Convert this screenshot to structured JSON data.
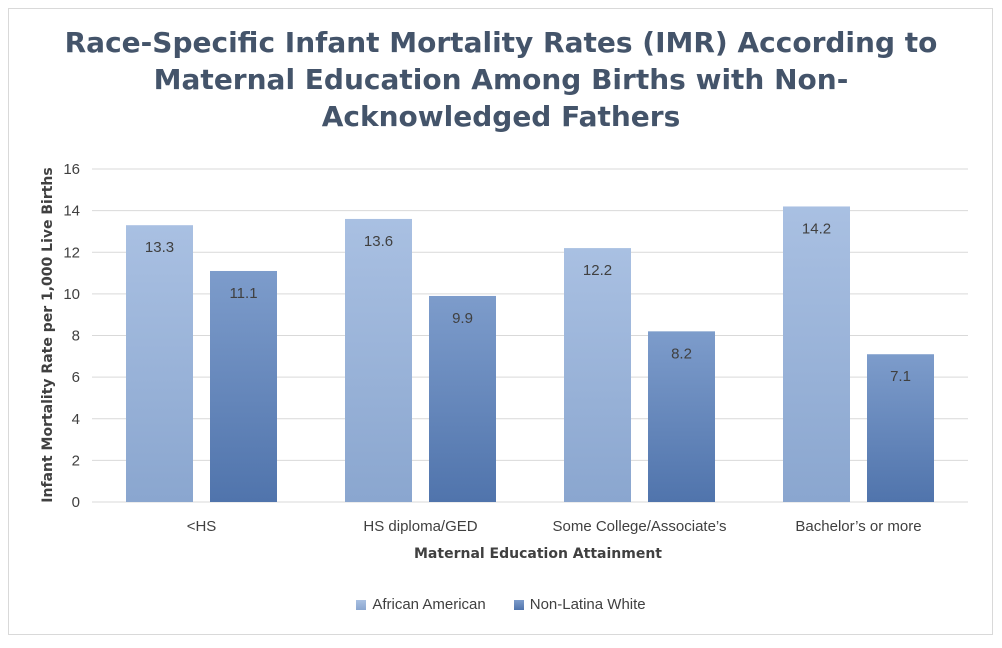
{
  "chart_data": {
    "type": "bar",
    "title_lines": [
      "Race-Specific Infant Mortality Rates (IMR) According to",
      "Maternal Education Among Births with Non-",
      "Acknowledged Fathers"
    ],
    "xlabel": "Maternal Education Attainment",
    "ylabel": "Infant Mortality Rate per 1,000 Live Births",
    "categories": [
      "<HS",
      "HS diploma/GED",
      "Some College/Associate’s",
      "Bachelor’s or more"
    ],
    "series": [
      {
        "name": "African American",
        "values": [
          13.3,
          13.6,
          12.2,
          14.2
        ],
        "labels": [
          "13.3",
          "13.6",
          "12.2",
          "14.2"
        ],
        "color_top": "#a9c0e2",
        "color_bottom": "#8aa6cf"
      },
      {
        "name": "Non-Latina White",
        "values": [
          11.1,
          9.9,
          8.2,
          7.1
        ],
        "labels": [
          "11.1",
          "9.9",
          "8.2",
          "7.1"
        ],
        "color_top": "#7d9ccb",
        "color_bottom": "#5074ac"
      }
    ],
    "ylim": [
      0,
      16
    ],
    "yticks": [
      0,
      2,
      4,
      6,
      8,
      10,
      12,
      14,
      16
    ],
    "grid": true,
    "legend_position": "bottom"
  }
}
